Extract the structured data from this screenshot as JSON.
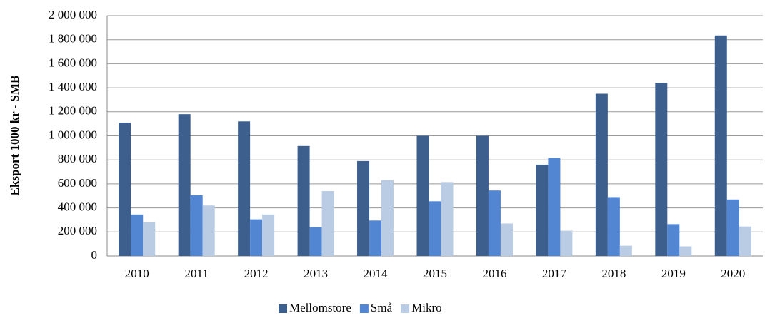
{
  "chart_data": {
    "type": "bar",
    "y_label": "Eksport 1000 kr - SMB",
    "categories": [
      "2010",
      "2011",
      "2012",
      "2013",
      "2014",
      "2015",
      "2016",
      "2017",
      "2018",
      "2019",
      "2020"
    ],
    "series": [
      {
        "name": "Mellomstore",
        "color": "#3c5f8e",
        "values": [
          1110000,
          1180000,
          1120000,
          915000,
          790000,
          1000000,
          1000000,
          760000,
          1350000,
          1440000,
          1835000
        ]
      },
      {
        "name": "Små",
        "color": "#5286d2",
        "values": [
          345000,
          505000,
          305000,
          240000,
          295000,
          455000,
          545000,
          815000,
          490000,
          265000,
          470000
        ]
      },
      {
        "name": "Mikro",
        "color": "#b9cce4",
        "values": [
          280000,
          420000,
          345000,
          540000,
          630000,
          615000,
          270000,
          210000,
          85000,
          80000,
          245000
        ]
      }
    ],
    "ylim": [
      0,
      2000000
    ],
    "yticks": [
      0,
      {
        "value": 200000,
        "label": "200 000"
      },
      {
        "value": 400000,
        "label": "400 000"
      },
      {
        "value": 600000,
        "label": "600 000"
      },
      {
        "value": 800000,
        "label": "800 000"
      },
      {
        "value": 1000000,
        "label": "1 000 000"
      },
      {
        "value": 1200000,
        "label": "1 200 000"
      },
      {
        "value": 1400000,
        "label": "1 400 000"
      },
      {
        "value": 1600000,
        "label": "1 600 000"
      },
      {
        "value": 1800000,
        "label": "1 800 000"
      },
      {
        "value": 2000000,
        "label": "2 000 000"
      }
    ],
    "grid": true,
    "legend": "bottom"
  }
}
